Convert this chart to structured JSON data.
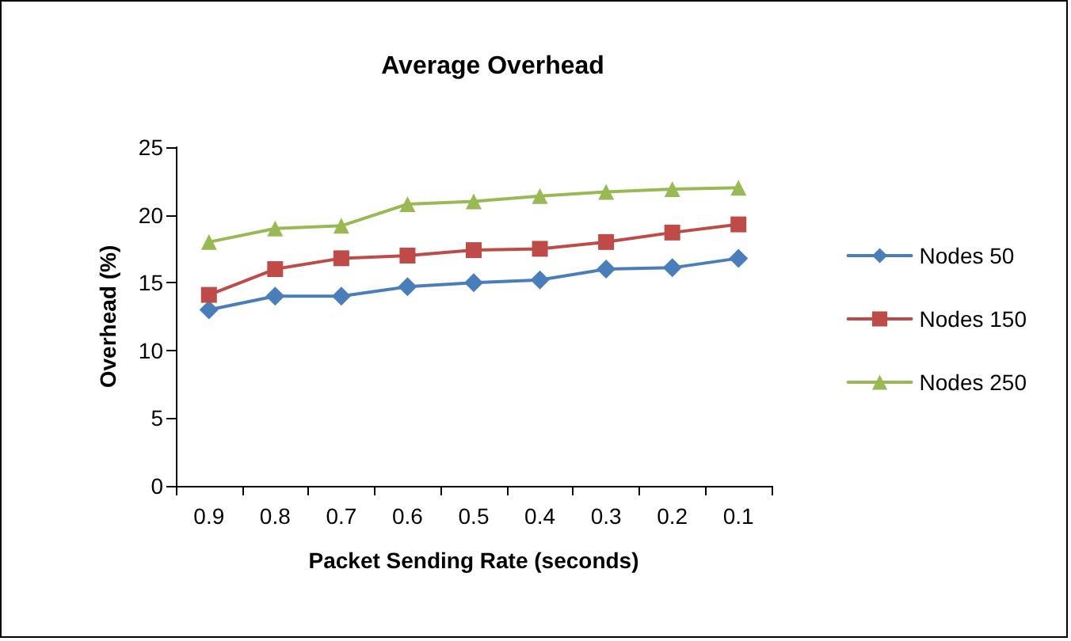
{
  "chart_data": {
    "type": "line",
    "title": "Average Overhead",
    "xlabel": "Packet Sending Rate (seconds)",
    "ylabel": "Overhead (%)",
    "categories": [
      "0.9",
      "0.8",
      "0.7",
      "0.6",
      "0.5",
      "0.4",
      "0.3",
      "0.2",
      "0.1"
    ],
    "series": [
      {
        "name": "Nodes 50",
        "color": "#4a7ebb",
        "marker": "diamond",
        "values": [
          13.0,
          14.0,
          14.0,
          14.7,
          15.0,
          15.2,
          16.0,
          16.1,
          16.8
        ]
      },
      {
        "name": "Nodes 150",
        "color": "#be4b48",
        "marker": "square",
        "values": [
          14.1,
          16.0,
          16.8,
          17.0,
          17.4,
          17.5,
          18.0,
          18.7,
          19.3
        ]
      },
      {
        "name": "Nodes 250",
        "color": "#98b954",
        "marker": "triangle",
        "values": [
          18.0,
          19.0,
          19.2,
          20.8,
          21.0,
          21.4,
          21.7,
          21.9,
          22.0
        ]
      }
    ],
    "ylim": [
      0,
      25
    ],
    "yticks": [
      0,
      5,
      10,
      15,
      20,
      25
    ],
    "grid": false,
    "legend": "right",
    "line_style": "solid"
  }
}
